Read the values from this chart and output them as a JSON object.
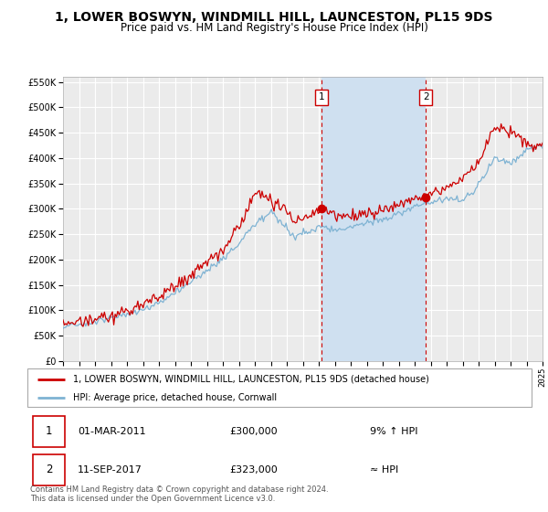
{
  "title": "1, LOWER BOSWYN, WINDMILL HILL, LAUNCESTON, PL15 9DS",
  "subtitle": "Price paid vs. HM Land Registry's House Price Index (HPI)",
  "title_fontsize": 10,
  "subtitle_fontsize": 8.5,
  "ylim": [
    0,
    560000
  ],
  "yticks": [
    0,
    50000,
    100000,
    150000,
    200000,
    250000,
    300000,
    350000,
    400000,
    450000,
    500000,
    550000
  ],
  "ytick_labels": [
    "£0",
    "£50K",
    "£100K",
    "£150K",
    "£200K",
    "£250K",
    "£300K",
    "£350K",
    "£400K",
    "£450K",
    "£500K",
    "£550K"
  ],
  "x_start_year": 1995,
  "x_end_year": 2025,
  "xtick_years": [
    1995,
    1996,
    1997,
    1998,
    1999,
    2000,
    2001,
    2002,
    2003,
    2004,
    2005,
    2006,
    2007,
    2008,
    2009,
    2010,
    2011,
    2012,
    2013,
    2014,
    2015,
    2016,
    2017,
    2018,
    2019,
    2020,
    2021,
    2022,
    2023,
    2024,
    2025
  ],
  "hpi_color": "#7fb3d3",
  "property_color": "#cc0000",
  "plot_bg_color": "#ebebeb",
  "shade_color": "#cfe0f0",
  "grid_color": "#ffffff",
  "vline_color": "#cc0000",
  "vline_x1": 2011.17,
  "vline_x2": 2017.71,
  "dot1_x": 2011.17,
  "dot1_y": 300000,
  "dot2_x": 2017.71,
  "dot2_y": 323000,
  "ann1_y": 520000,
  "ann2_y": 520000,
  "legend_entries": [
    {
      "label": "1, LOWER BOSWYN, WINDMILL HILL, LAUNCESTON, PL15 9DS (detached house)",
      "color": "#cc0000"
    },
    {
      "label": "HPI: Average price, detached house, Cornwall",
      "color": "#7fb3d3"
    }
  ],
  "table_rows": [
    {
      "num": "1",
      "date": "01-MAR-2011",
      "price": "£300,000",
      "note": "9% ↑ HPI"
    },
    {
      "num": "2",
      "date": "11-SEP-2017",
      "price": "£323,000",
      "note": "≈ HPI"
    }
  ],
  "footer": "Contains HM Land Registry data © Crown copyright and database right 2024.\nThis data is licensed under the Open Government Licence v3.0."
}
